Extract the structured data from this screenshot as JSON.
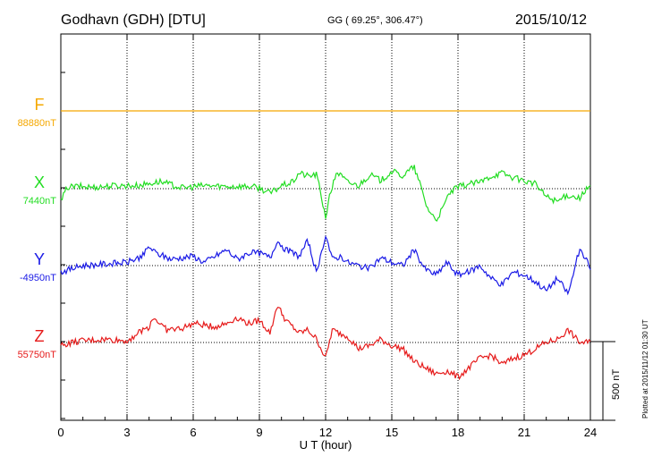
{
  "header": {
    "station": "Godhavn (GDH)  [DTU]",
    "coords": "GG ( 69.25°, 306.47°)",
    "date": "2015/10/12"
  },
  "footer_note": "Plotted at 2015/11/12 01:30 UT",
  "scale_bar": {
    "label": "500 nT",
    "value_nT": 500
  },
  "chart_data": {
    "type": "line",
    "title": "Godhavn (GDH) [DTU] 2015/10/12",
    "xlabel": "U T (hour)",
    "ylabel": "",
    "xlim": [
      0,
      24
    ],
    "x_ticks": [
      0,
      3,
      6,
      9,
      12,
      15,
      18,
      21,
      24
    ],
    "x_tick_labels": [
      "0",
      "3",
      "6",
      "9",
      "12",
      "15",
      "18",
      "21",
      "24"
    ],
    "grid": true,
    "series": [
      {
        "name": "F",
        "baseline_label": "88880nT",
        "baseline_nT": 88880,
        "color": "#f5a800",
        "x": [
          0,
          24
        ],
        "dev": [
          0,
          0
        ]
      },
      {
        "name": "X",
        "baseline_label": "7440nT",
        "baseline_nT": 7440,
        "color": "#22dd22",
        "x": [
          0,
          0.3,
          0.8,
          1.5,
          2.5,
          3.5,
          4.5,
          5.5,
          6.5,
          7.5,
          8.5,
          9.0,
          9.5,
          10.0,
          10.5,
          10.8,
          11.2,
          11.6,
          12.0,
          12.2,
          12.5,
          13.0,
          13.5,
          14.0,
          14.5,
          15.0,
          15.5,
          16.0,
          16.3,
          16.6,
          17.0,
          17.3,
          17.6,
          18.0,
          18.5,
          19.0,
          19.5,
          20.0,
          20.5,
          21.0,
          21.5,
          22.0,
          22.5,
          23.0,
          23.5,
          24.0
        ],
        "dev": [
          -80,
          10,
          15,
          10,
          20,
          20,
          45,
          5,
          20,
          15,
          15,
          5,
          -30,
          20,
          40,
          100,
          80,
          90,
          -180,
          -40,
          110,
          40,
          20,
          90,
          50,
          110,
          80,
          140,
          20,
          -120,
          -200,
          -130,
          -30,
          10,
          30,
          40,
          80,
          100,
          70,
          50,
          30,
          -50,
          -80,
          -40,
          -60,
          20
        ]
      },
      {
        "name": "Y",
        "baseline_label": "-4950nT",
        "baseline_nT": -4950,
        "color": "#1a1ae6",
        "x": [
          0,
          0.5,
          1.0,
          2.0,
          3.0,
          3.7,
          4.0,
          4.3,
          5.0,
          6.0,
          6.5,
          7.0,
          7.5,
          8.0,
          8.5,
          9.0,
          9.5,
          9.8,
          10.2,
          10.8,
          11.2,
          11.6,
          12.0,
          12.3,
          12.7,
          13.0,
          13.5,
          14.0,
          14.5,
          15.0,
          15.5,
          16.0,
          16.5,
          17.0,
          17.5,
          18.0,
          18.5,
          19.0,
          19.5,
          20.0,
          20.5,
          21.0,
          21.5,
          22.0,
          22.5,
          23.0,
          23.5,
          24.0
        ],
        "dev": [
          -40,
          -20,
          0,
          10,
          20,
          60,
          120,
          80,
          40,
          60,
          20,
          60,
          100,
          40,
          80,
          80,
          50,
          160,
          100,
          60,
          160,
          -60,
          200,
          40,
          60,
          20,
          0,
          -20,
          50,
          20,
          0,
          100,
          -20,
          -60,
          20,
          -60,
          -40,
          0,
          -80,
          -120,
          -40,
          -60,
          -100,
          -160,
          -80,
          -180,
          100,
          -10
        ]
      },
      {
        "name": "Z",
        "baseline_label": "55750nT",
        "baseline_nT": 55750,
        "color": "#e61a1a",
        "x": [
          0,
          0.5,
          1.0,
          2.0,
          3.0,
          3.5,
          4.0,
          4.2,
          4.8,
          5.5,
          6.0,
          7.0,
          7.5,
          8.0,
          8.5,
          9.0,
          9.5,
          9.8,
          10.2,
          10.8,
          11.2,
          11.6,
          12.0,
          12.3,
          12.6,
          13.0,
          13.5,
          14.0,
          14.5,
          15.0,
          15.5,
          16.0,
          16.5,
          17.0,
          17.5,
          18.0,
          18.5,
          19.0,
          19.5,
          20.0,
          20.5,
          21.0,
          21.5,
          22.0,
          22.5,
          23.0,
          23.5,
          24.0
        ],
        "dev": [
          -20,
          0,
          10,
          20,
          10,
          60,
          100,
          160,
          80,
          90,
          120,
          100,
          120,
          160,
          120,
          140,
          60,
          240,
          140,
          60,
          80,
          20,
          -100,
          80,
          60,
          40,
          -40,
          -20,
          20,
          -20,
          -40,
          -120,
          -160,
          -200,
          -180,
          -220,
          -160,
          -100,
          -80,
          -140,
          -100,
          -80,
          -40,
          0,
          20,
          80,
          0,
          0
        ]
      }
    ]
  }
}
